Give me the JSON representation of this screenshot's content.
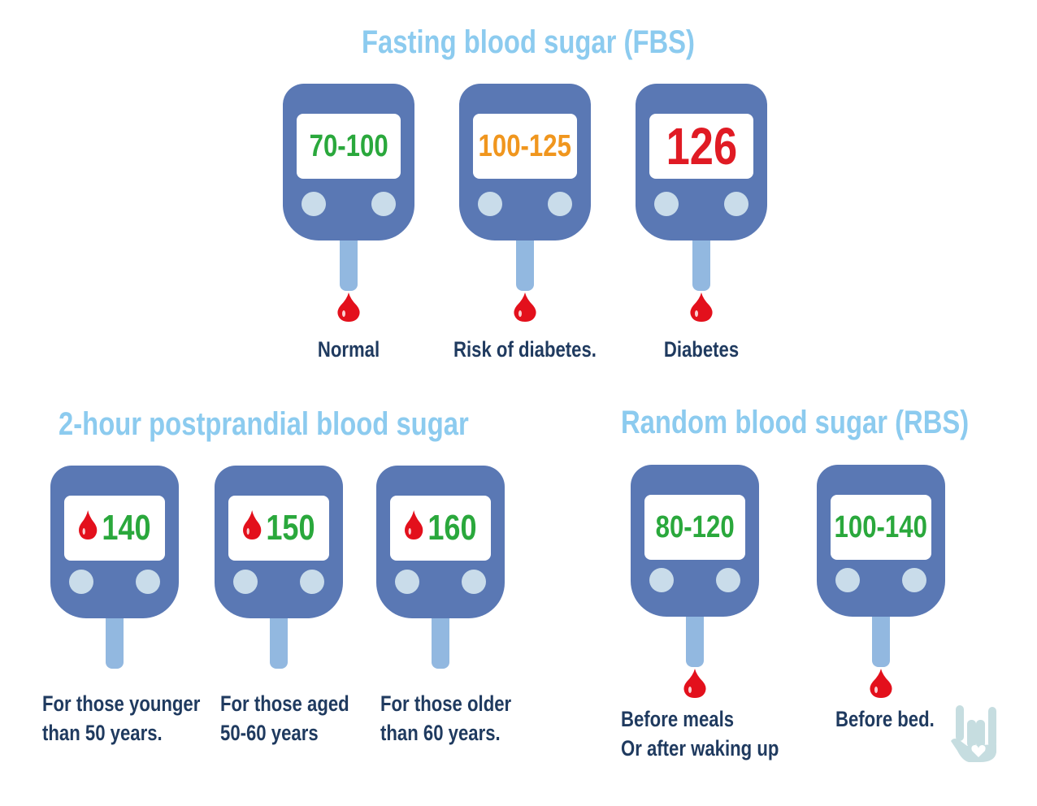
{
  "colors": {
    "title": "#8ccbef",
    "meter_body": "#5a78b4",
    "meter_button": "#c9dcea",
    "strip": "#92b8e0",
    "blood": "#e3101c",
    "label": "#1f3a5f",
    "normal": "#2aa83c",
    "risk": "#f0961e",
    "diabetes": "#e01b24",
    "logo": "#c6dde0"
  },
  "sections": [
    {
      "id": "fbs",
      "title": "Fasting blood sugar (FBS)",
      "meters": [
        {
          "reading": "70-100",
          "reading_color": "#2aa83c",
          "label_lines": [
            "Normal"
          ],
          "drop_below": true
        },
        {
          "reading": "100-125",
          "reading_color": "#f0961e",
          "label_lines": [
            "Risk of diabetes."
          ],
          "drop_below": true
        },
        {
          "reading": "126",
          "reading_color": "#e01b24",
          "label_lines": [
            "Diabetes"
          ],
          "drop_below": true
        }
      ]
    },
    {
      "id": "ppbs",
      "title": "2-hour postprandial blood sugar",
      "meters": [
        {
          "reading": "140",
          "reading_color": "#2aa83c",
          "screen_icon": "blood-drop-icon",
          "label_lines": [
            "For those younger",
            "than 50 years."
          ],
          "drop_below": false
        },
        {
          "reading": "150",
          "reading_color": "#2aa83c",
          "screen_icon": "blood-drop-icon",
          "label_lines": [
            "For those aged",
            "50-60 years"
          ],
          "drop_below": false
        },
        {
          "reading": "160",
          "reading_color": "#2aa83c",
          "screen_icon": "blood-drop-icon",
          "label_lines": [
            "For those older",
            "than 60 years."
          ],
          "drop_below": false
        }
      ]
    },
    {
      "id": "rbs",
      "title": "Random blood sugar (RBS)",
      "meters": [
        {
          "reading": "80-120",
          "reading_color": "#2aa83c",
          "label_lines": [
            "Before meals",
            "Or after waking up"
          ],
          "drop_below": true
        },
        {
          "reading": "100-140",
          "reading_color": "#2aa83c",
          "label_lines": [
            "Before bed."
          ],
          "drop_below": true
        }
      ]
    }
  ],
  "logo": {
    "icon": "love-hand-sign-icon"
  }
}
